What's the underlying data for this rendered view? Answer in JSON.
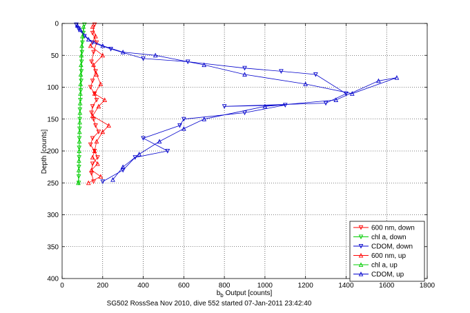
{
  "chart_data": {
    "type": "scatter",
    "xlabel_main": "b",
    "xlabel_sub": "b",
    "xlabel_rest": " Output [counts]",
    "ylabel": "Depth [counts]",
    "caption": "SG502 RossSea Nov 2010, dive 552 started 07-Jan-2011 23:42:40",
    "xlim": [
      0,
      1800
    ],
    "ylim": [
      0,
      400
    ],
    "y_reversed": true,
    "grid": true,
    "legend_position": "bottom-right",
    "xticks": [
      "0",
      "200",
      "400",
      "600",
      "800",
      "1000",
      "1200",
      "1400",
      "1600",
      "1800"
    ],
    "yticks": [
      "0",
      "50",
      "100",
      "150",
      "200",
      "250",
      "300",
      "350",
      "400"
    ],
    "series": [
      {
        "name": "600 nm, down",
        "color": "#ff0000",
        "marker": "triangle-down",
        "x": [
          160,
          150,
          170,
          155,
          145,
          165,
          150,
          140,
          160,
          170,
          150,
          145,
          155,
          165,
          180,
          150,
          140,
          160,
          175,
          150,
          145,
          155
        ],
        "y": [
          2,
          15,
          30,
          45,
          60,
          75,
          90,
          100,
          110,
          120,
          130,
          140,
          150,
          160,
          170,
          180,
          190,
          200,
          210,
          220,
          235,
          248
        ]
      },
      {
        "name": "chl a, down",
        "color": "#00cc00",
        "marker": "triangle-down",
        "x": [
          110,
          105,
          100,
          98,
          96,
          95,
          94,
          92,
          90,
          88,
          87,
          86,
          85,
          84,
          84,
          83,
          82,
          82
        ],
        "y": [
          2,
          15,
          30,
          45,
          60,
          75,
          90,
          105,
          120,
          135,
          150,
          165,
          180,
          195,
          210,
          225,
          240,
          250
        ]
      },
      {
        "name": "CDOM, down",
        "color": "#0000cc",
        "marker": "triangle-down",
        "x": [
          70,
          80,
          110,
          150,
          240,
          400,
          620,
          900,
          1080,
          1250,
          1400,
          1300,
          800,
          1100,
          900,
          600,
          580,
          400,
          520,
          360,
          300,
          200
        ],
        "y": [
          2,
          8,
          20,
          30,
          40,
          55,
          60,
          70,
          75,
          80,
          110,
          125,
          130,
          128,
          140,
          150,
          160,
          180,
          200,
          210,
          230,
          248
        ]
      },
      {
        "name": "600 nm, up",
        "color": "#ff0000",
        "marker": "triangle-up",
        "x": [
          150,
          165,
          140,
          200,
          155,
          170,
          190,
          160,
          210,
          180,
          150,
          230,
          200,
          170,
          160,
          150,
          175,
          145,
          190,
          130
        ],
        "y": [
          5,
          20,
          35,
          50,
          65,
          80,
          95,
          110,
          120,
          130,
          145,
          160,
          170,
          185,
          200,
          210,
          220,
          230,
          240,
          250
        ]
      },
      {
        "name": "chl a, up",
        "color": "#00cc00",
        "marker": "triangle-up",
        "x": [
          105,
          100,
          97,
          95,
          93,
          92,
          91,
          90,
          89,
          88,
          87,
          86,
          85,
          84,
          83,
          82,
          80
        ],
        "y": [
          5,
          20,
          35,
          50,
          65,
          80,
          95,
          110,
          125,
          140,
          155,
          170,
          185,
          200,
          215,
          230,
          250
        ]
      },
      {
        "name": "CDOM, up",
        "color": "#0000cc",
        "marker": "triangle-up",
        "x": [
          75,
          90,
          130,
          200,
          300,
          460,
          700,
          900,
          1200,
          1430,
          1650,
          1560,
          1350,
          1000,
          700,
          600,
          480,
          380,
          300,
          250
        ],
        "y": [
          3,
          10,
          25,
          35,
          45,
          50,
          65,
          80,
          95,
          110,
          85,
          90,
          120,
          130,
          150,
          165,
          185,
          205,
          225,
          245
        ]
      }
    ]
  }
}
